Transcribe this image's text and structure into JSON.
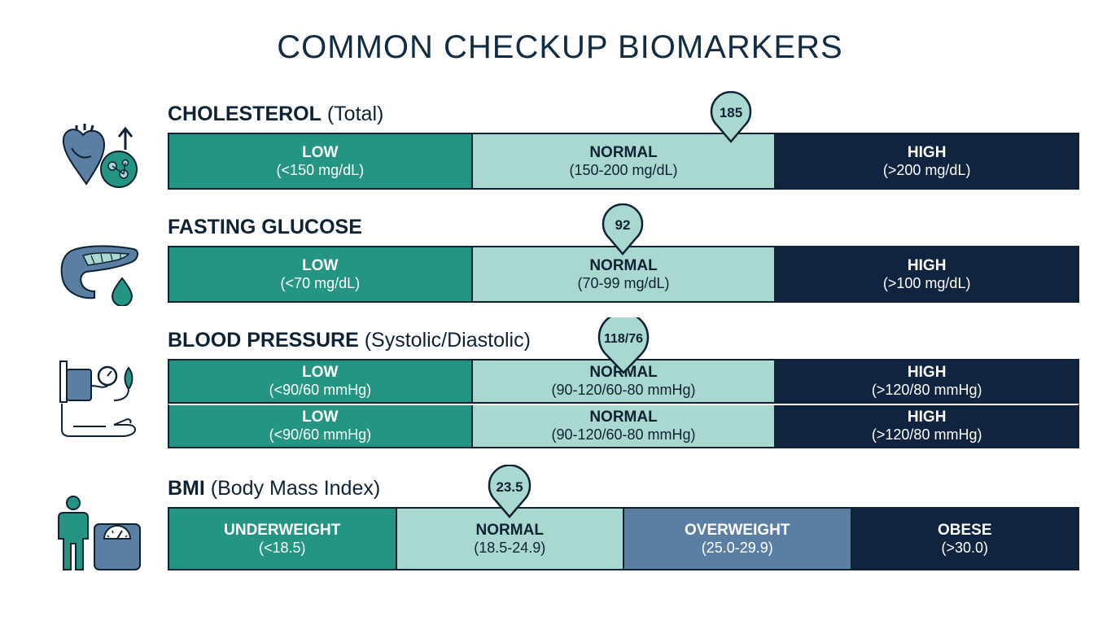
{
  "title": "COMMON CHECKUP BIOMARKERS",
  "colors": {
    "low": "#259583",
    "normal": "#a9d8d0",
    "high": "#10233f",
    "overweight": "#5b7ea3",
    "outline": "#0f2233"
  },
  "cholesterol": {
    "label_bold": "CHOLESTEROL",
    "label_sub": "(Total)",
    "icon": "heart-cholesterol-icon",
    "value": "185",
    "segments": [
      {
        "name": "LOW",
        "range": "(<150 mg/dL)"
      },
      {
        "name": "NORMAL",
        "range": "(150-200 mg/dL)"
      },
      {
        "name": "HIGH",
        "range": "(>200 mg/dL)"
      }
    ]
  },
  "glucose": {
    "label_bold": "FASTING GLUCOSE",
    "icon": "pancreas-drop-icon",
    "value": "92",
    "segments": [
      {
        "name": "LOW",
        "range": "(<70 mg/dL)"
      },
      {
        "name": "NORMAL",
        "range": "(70-99 mg/dL)"
      },
      {
        "name": "HIGH",
        "range": "(>100 mg/dL)"
      }
    ]
  },
  "blood_pressure": {
    "label_bold": "BLOOD PRESSURE",
    "label_sub": "(Systolic/Diastolic)",
    "icon": "blood-pressure-cuff-icon",
    "value": "118/76",
    "rows": [
      [
        {
          "name": "LOW",
          "range": "(<90/60 mmHg)"
        },
        {
          "name": "NORMAL",
          "range": "(90-120/60-80 mmHg)"
        },
        {
          "name": "HIGH",
          "range": "(>120/80 mmHg)"
        }
      ],
      [
        {
          "name": "LOW",
          "range": "(<90/60 mmHg)"
        },
        {
          "name": "NORMAL",
          "range": "(90-120/60-80 mmHg)"
        },
        {
          "name": "HIGH",
          "range": "(>120/80 mmHg)"
        }
      ]
    ]
  },
  "bmi": {
    "label_bold": "BMI",
    "label_sub": "(Body Mass Index)",
    "icon": "person-scale-icon",
    "value": "23.5",
    "segments": [
      {
        "name": "UNDERWEIGHT",
        "range": "(<18.5)"
      },
      {
        "name": "NORMAL",
        "range": "(18.5-24.9)"
      },
      {
        "name": "OVERWEIGHT",
        "range": "(25.0-29.9)"
      },
      {
        "name": "OBESE",
        "range": "(>30.0)"
      }
    ]
  }
}
